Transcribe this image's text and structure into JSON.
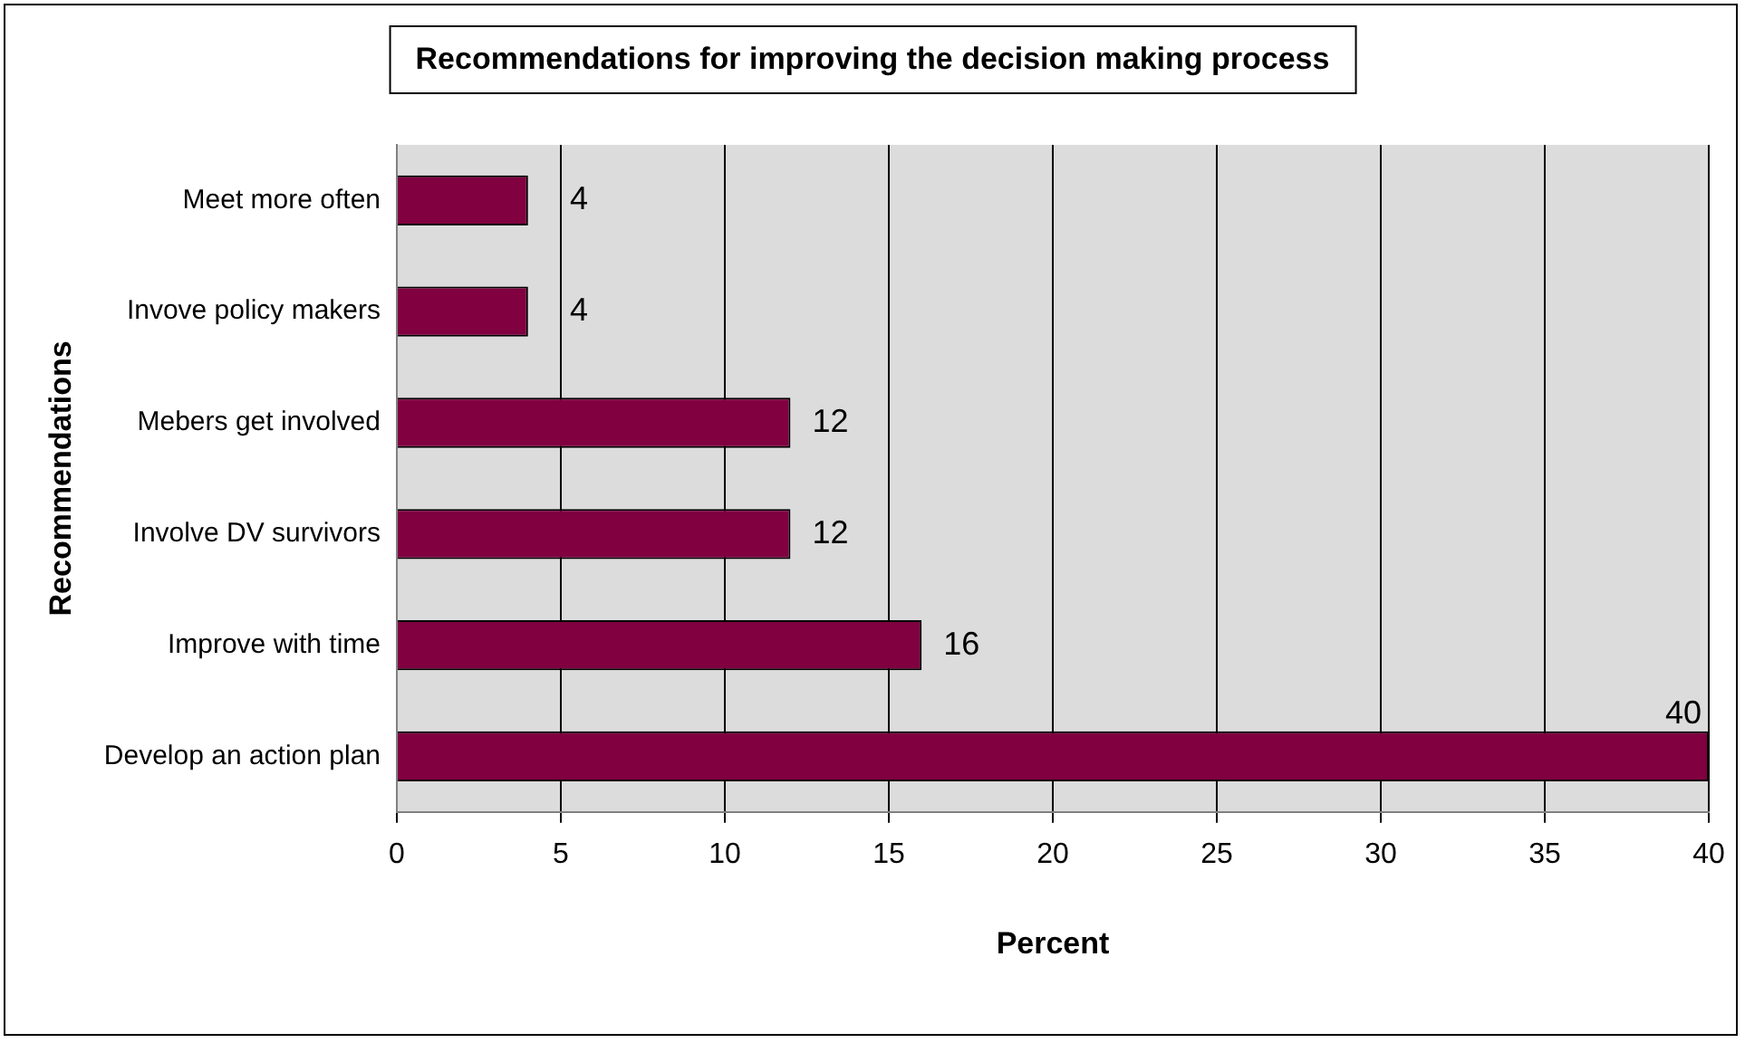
{
  "chart_data": {
    "type": "bar",
    "orientation": "horizontal",
    "title": "Recommendations for improving the decision making process",
    "xlabel": "Percent",
    "ylabel": "Recommendations",
    "categories": [
      "Meet more often",
      "Invove policy makers",
      "Mebers get involved",
      "Involve DV survivors",
      "Improve with time",
      "Develop an action plan"
    ],
    "values": [
      4,
      4,
      12,
      12,
      16,
      40
    ],
    "color": "#800040",
    "xlim": [
      0,
      40
    ],
    "xticks": [
      0,
      5,
      10,
      15,
      20,
      25,
      30,
      35,
      40
    ],
    "grid": "x",
    "data_labels": true,
    "legend": false
  }
}
